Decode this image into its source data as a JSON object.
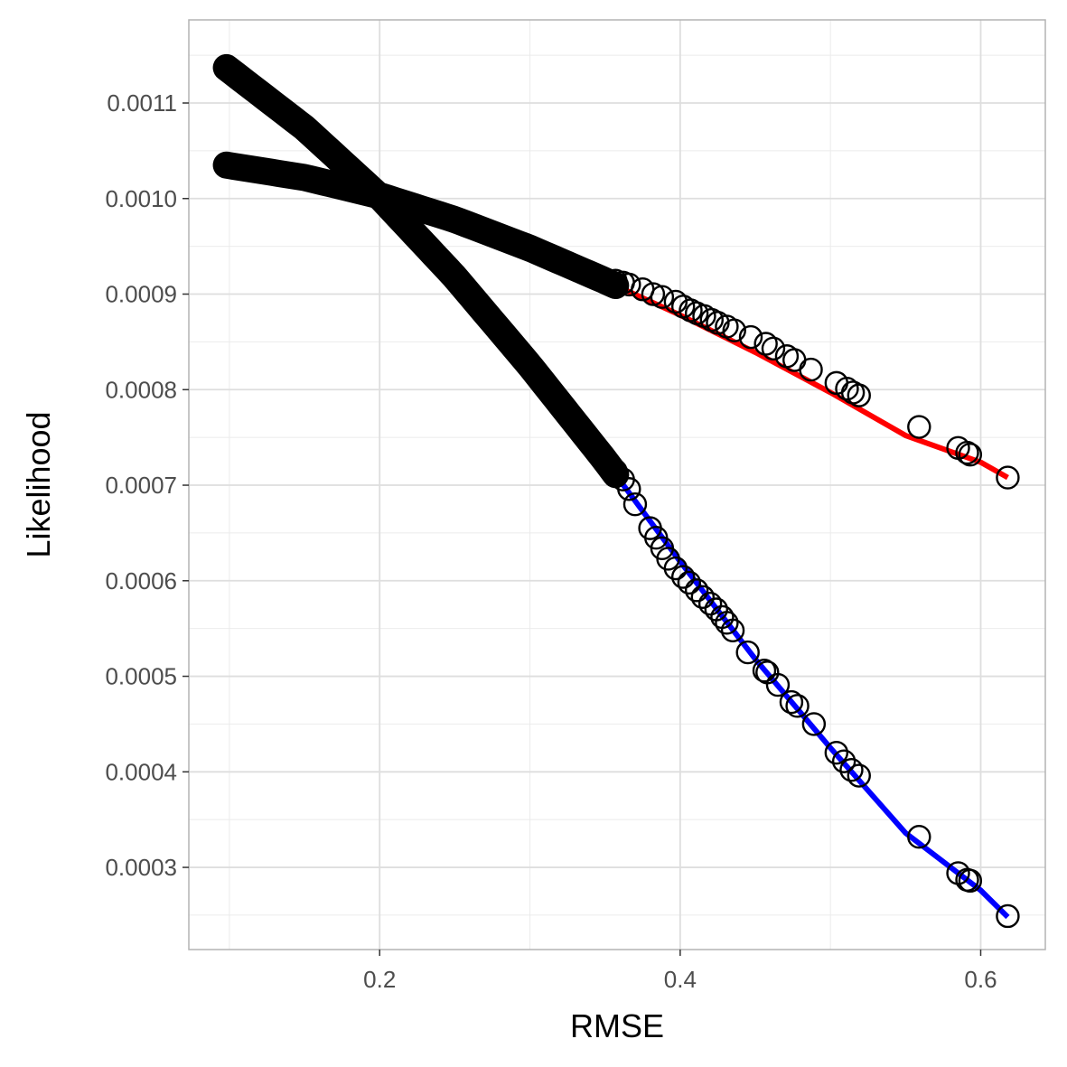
{
  "chart_data": {
    "type": "scatter",
    "title": "",
    "xlabel": "RMSE",
    "ylabel": "Likelihood",
    "xlim": [
      0.073,
      0.643
    ],
    "ylim": [
      0.000214,
      0.001187
    ],
    "xticks": [
      0.2,
      0.4,
      0.6
    ],
    "xtick_labels": [
      "0.2",
      "0.4",
      "0.6"
    ],
    "yticks": [
      0.0003,
      0.0004,
      0.0005,
      0.0006,
      0.0007,
      0.0008,
      0.0009,
      0.001,
      0.0011
    ],
    "ytick_labels": [
      "0.0003",
      "0.0004",
      "0.0005",
      "0.0006",
      "0.0007",
      "0.0008",
      "0.0009",
      "0.0010",
      "0.0011"
    ],
    "grid": true,
    "legend": "none",
    "colors": {
      "red_line": "#ff0000",
      "blue_line": "#0000ff",
      "points": "#000000",
      "grid": "#ebebeb",
      "panel_border": "#b3b3b3"
    },
    "series": [
      {
        "color": "#ff0000",
        "line_x": [
          0.098,
          0.15,
          0.2,
          0.25,
          0.3,
          0.35,
          0.4,
          0.45,
          0.5,
          0.55,
          0.6,
          0.618
        ],
        "line_y": [
          0.001035,
          0.001022,
          0.001003,
          0.000978,
          0.000948,
          0.000914,
          0.000878,
          0.000839,
          0.000797,
          0.000752,
          0.000724,
          0.000708
        ],
        "points_x": [
          0.357,
          0.362,
          0.366,
          0.375,
          0.382,
          0.388,
          0.397,
          0.402,
          0.407,
          0.411,
          0.416,
          0.421,
          0.425,
          0.431,
          0.436,
          0.447,
          0.457,
          0.462,
          0.471,
          0.476,
          0.487,
          0.504,
          0.511,
          0.515,
          0.519,
          0.559,
          0.585,
          0.591,
          0.593,
          0.618
        ],
        "points_y": [
          0.000914,
          0.000912,
          0.00091,
          0.000905,
          0.0009,
          0.000897,
          0.000892,
          0.000887,
          0.000883,
          0.00088,
          0.000877,
          0.000873,
          0.00087,
          0.000866,
          0.000862,
          0.000855,
          0.000848,
          0.000843,
          0.000835,
          0.000831,
          0.000821,
          0.000807,
          0.000801,
          0.000797,
          0.000794,
          0.000761,
          0.000739,
          0.000734,
          0.000732,
          0.000708
        ]
      },
      {
        "color": "#0000ff",
        "line_x": [
          0.098,
          0.15,
          0.2,
          0.25,
          0.3,
          0.35,
          0.4,
          0.45,
          0.5,
          0.55,
          0.6,
          0.618
        ],
        "line_y": [
          0.001137,
          0.001074,
          0.001002,
          0.000918,
          0.000825,
          0.000726,
          0.00062,
          0.000518,
          0.000425,
          0.000336,
          0.000276,
          0.000248
        ],
        "points_x": [
          0.357,
          0.362,
          0.366,
          0.37,
          0.38,
          0.384,
          0.388,
          0.392,
          0.397,
          0.402,
          0.406,
          0.411,
          0.415,
          0.42,
          0.424,
          0.428,
          0.431,
          0.435,
          0.445,
          0.456,
          0.458,
          0.465,
          0.474,
          0.478,
          0.489,
          0.504,
          0.509,
          0.514,
          0.519,
          0.559,
          0.585,
          0.591,
          0.593,
          0.618
        ],
        "points_y": [
          0.000715,
          0.000706,
          0.000696,
          0.00068,
          0.000655,
          0.000645,
          0.000634,
          0.000623,
          0.000613,
          0.000604,
          0.000598,
          0.00059,
          0.000583,
          0.000576,
          0.00057,
          0.000562,
          0.000556,
          0.000548,
          0.000525,
          0.000506,
          0.000504,
          0.000491,
          0.000473,
          0.000469,
          0.00045,
          0.00042,
          0.000411,
          0.000402,
          0.000396,
          0.000332,
          0.000294,
          0.000287,
          0.000286,
          0.000249
        ]
      }
    ],
    "dense_band_x": [
      0.098,
      0.357
    ]
  }
}
